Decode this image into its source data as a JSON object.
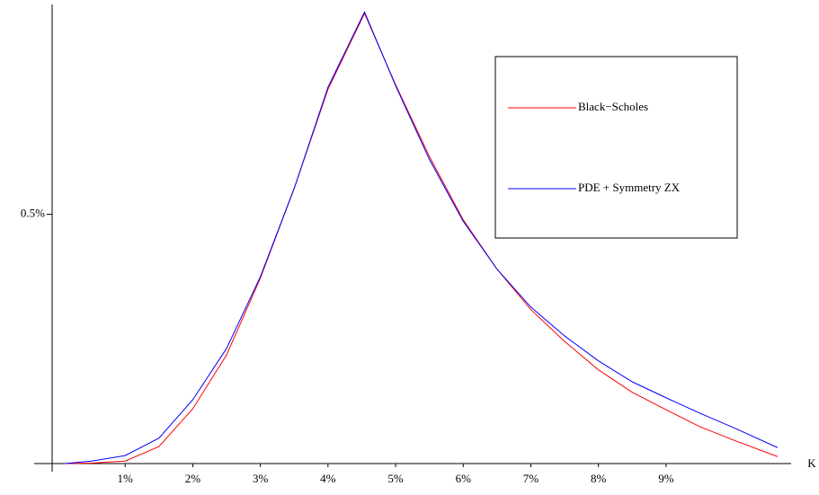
{
  "chart_data": {
    "type": "line",
    "x_label": "K",
    "x": [
      0.11,
      0.5,
      1,
      1.5,
      2,
      2.5,
      3,
      3.5,
      4,
      4.54,
      5,
      5.5,
      6,
      6.5,
      7,
      7.5,
      8,
      8.5,
      9,
      9.5,
      10,
      10.65
    ],
    "series": [
      {
        "name": "Black−Scholes",
        "color": "#ff0000",
        "values": [
          0,
          0.001,
          0.005,
          0.034,
          0.11,
          0.218,
          0.372,
          0.552,
          0.751,
          0.903,
          0.76,
          0.616,
          0.489,
          0.39,
          0.309,
          0.245,
          0.188,
          0.143,
          0.108,
          0.074,
          0.047,
          0.014
        ]
      },
      {
        "name": "PDE + Symmetry ZX",
        "color": "#0000ff",
        "values": [
          0,
          0.005,
          0.016,
          0.051,
          0.128,
          0.231,
          0.375,
          0.552,
          0.755,
          0.906,
          0.758,
          0.61,
          0.486,
          0.39,
          0.314,
          0.256,
          0.206,
          0.164,
          0.132,
          0.101,
          0.072,
          0.032
        ]
      }
    ],
    "xlim": [
      -0.08,
      10.85
    ],
    "ylim": [
      0,
      0.93
    ],
    "xticks": [
      {
        "value": 1,
        "label": "1%"
      },
      {
        "value": 2,
        "label": "2%"
      },
      {
        "value": 3,
        "label": "3%"
      },
      {
        "value": 4,
        "label": "4%"
      },
      {
        "value": 5,
        "label": "5%"
      },
      {
        "value": 6,
        "label": "6%"
      },
      {
        "value": 7,
        "label": "7%"
      },
      {
        "value": 8,
        "label": "8%"
      },
      {
        "value": 9,
        "label": "9%"
      }
    ],
    "yticks": [
      {
        "value": 0.5,
        "label": "0.5%"
      }
    ],
    "grid": false,
    "legend": "upper right"
  }
}
